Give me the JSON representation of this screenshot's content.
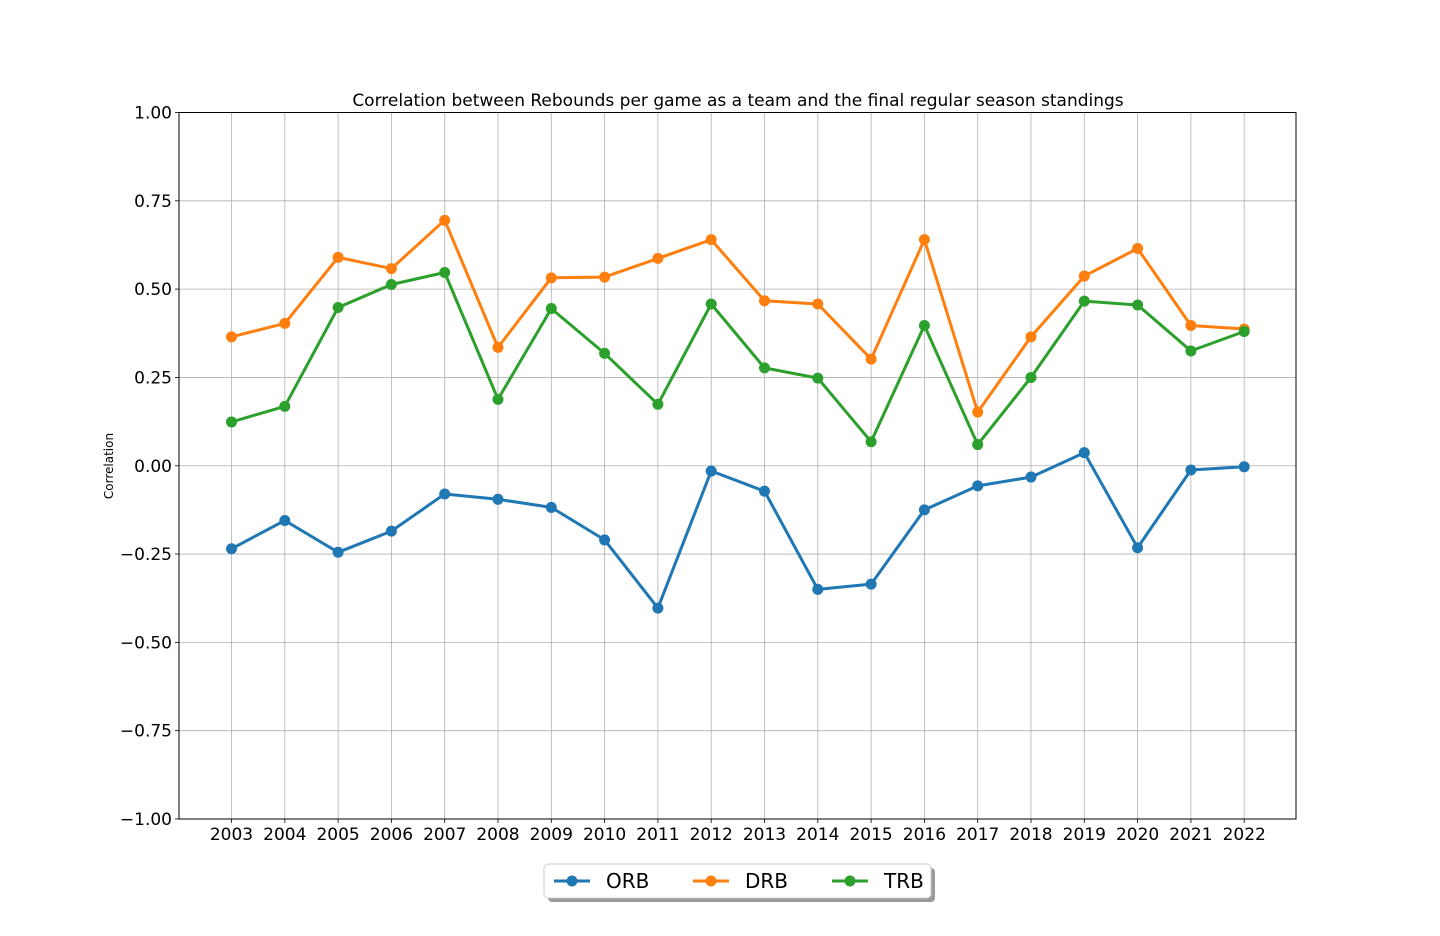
{
  "chart_data": {
    "type": "line",
    "title": "Correlation between Rebounds per game as a team and the final regular season standings",
    "xlabel": "",
    "ylabel": "Correlation",
    "x": [
      "2003",
      "2004",
      "2005",
      "2006",
      "2007",
      "2008",
      "2009",
      "2010",
      "2011",
      "2012",
      "2013",
      "2014",
      "2015",
      "2016",
      "2017",
      "2018",
      "2019",
      "2020",
      "2021",
      "2022"
    ],
    "ylim": [
      -1.0,
      1.0
    ],
    "yticks": [
      "1.00",
      "0.75",
      "0.50",
      "0.25",
      "0.00",
      "−0.25",
      "−0.50",
      "−0.75",
      "−1.00"
    ],
    "ytick_values": [
      1.0,
      0.75,
      0.5,
      0.25,
      0.0,
      -0.25,
      -0.5,
      -0.75,
      -1.0
    ],
    "grid": true,
    "legend_position": "bottom-center",
    "series": [
      {
        "name": "ORB",
        "color": "#1f77b4",
        "values": [
          -0.235,
          -0.155,
          -0.245,
          -0.185,
          -0.08,
          -0.095,
          -0.118,
          -0.21,
          -0.403,
          -0.015,
          -0.072,
          -0.35,
          -0.335,
          -0.125,
          -0.057,
          -0.032,
          0.037,
          -0.232,
          -0.012,
          -0.003
        ]
      },
      {
        "name": "DRB",
        "color": "#ff7f0e",
        "values": [
          0.365,
          0.403,
          0.59,
          0.558,
          0.695,
          0.335,
          0.532,
          0.534,
          0.587,
          0.64,
          0.467,
          0.458,
          0.302,
          0.64,
          0.152,
          0.365,
          0.537,
          0.615,
          0.397,
          0.387
        ]
      },
      {
        "name": "TRB",
        "color": "#2ca02c",
        "values": [
          0.124,
          0.168,
          0.448,
          0.513,
          0.547,
          0.188,
          0.445,
          0.318,
          0.174,
          0.458,
          0.277,
          0.248,
          0.068,
          0.397,
          0.06,
          0.25,
          0.466,
          0.455,
          0.325,
          0.38
        ]
      }
    ]
  }
}
